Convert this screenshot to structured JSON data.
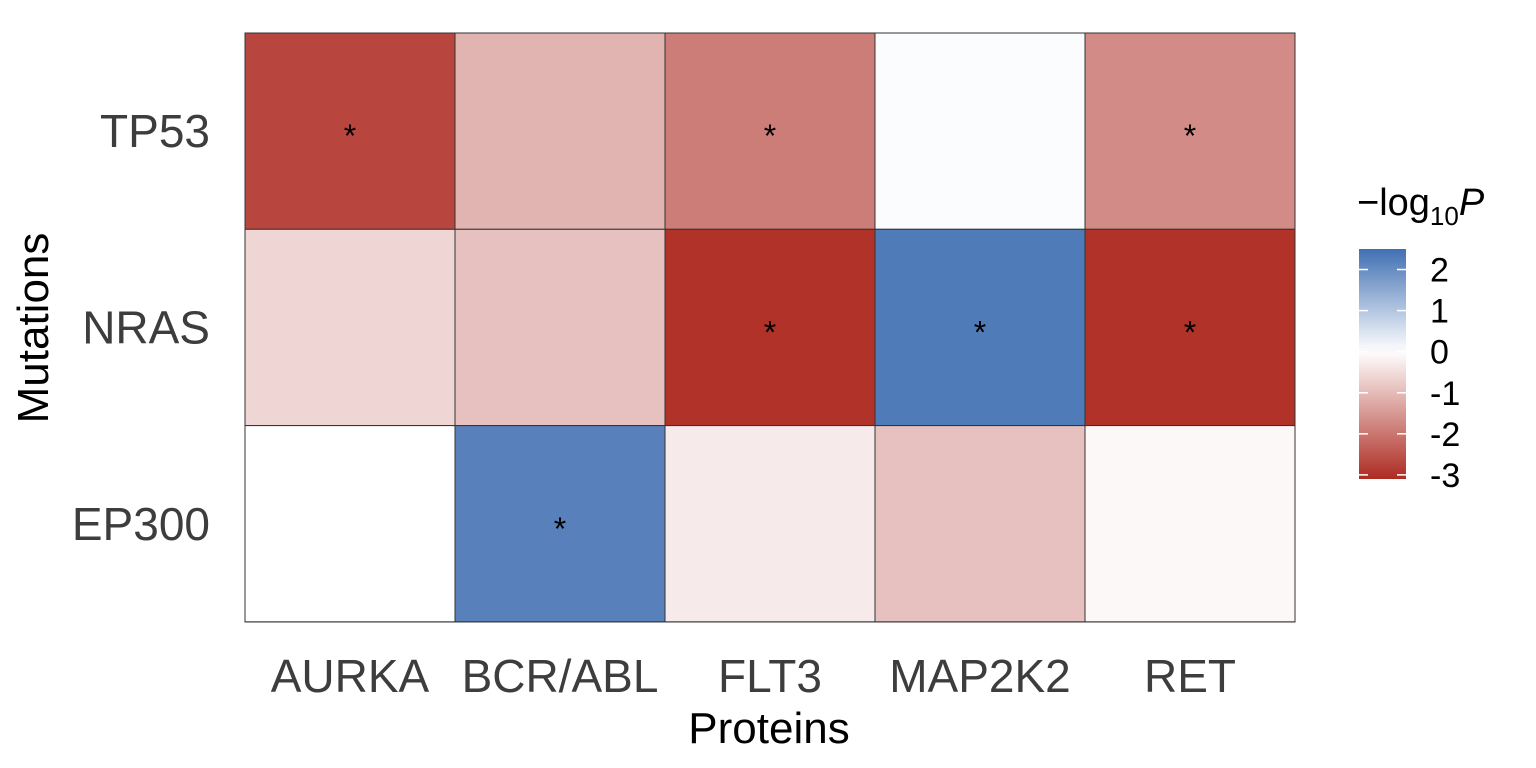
{
  "chart_data": {
    "type": "heatmap",
    "title": "",
    "xlabel": "Proteins",
    "ylabel": "Mutations",
    "x_categories": [
      "AURKA",
      "BCR/ABL",
      "FLT3",
      "MAP2K2",
      "RET"
    ],
    "y_categories": [
      "TP53",
      "NRAS",
      "EP300"
    ],
    "values": [
      [
        -2.7,
        -1.1,
        -1.9,
        0.05,
        -1.7
      ],
      [
        -0.6,
        -0.9,
        -3.0,
        2.3,
        -3.0
      ],
      [
        0.0,
        2.2,
        -0.3,
        -0.9,
        -0.1
      ]
    ],
    "significance_marker": "*",
    "significant": [
      [
        true,
        false,
        true,
        false,
        true
      ],
      [
        false,
        false,
        true,
        true,
        true
      ],
      [
        false,
        true,
        false,
        false,
        false
      ]
    ],
    "legend": {
      "title_prefix": "−log",
      "title_subscript": "10",
      "title_variable": "P",
      "ticks": [
        "2",
        "1",
        "0",
        "-1",
        "-2",
        "-3"
      ],
      "tick_values": [
        2,
        1,
        0,
        -1,
        -2,
        -3
      ],
      "range": [
        -3.1,
        2.5
      ],
      "placement": "right",
      "colors": {
        "high": "#4170b3",
        "mid": "#ffffff",
        "low": "#ad2b22"
      }
    },
    "colors": {
      "cell_border": "#333333",
      "tick_label": "#3d3d3d"
    }
  }
}
